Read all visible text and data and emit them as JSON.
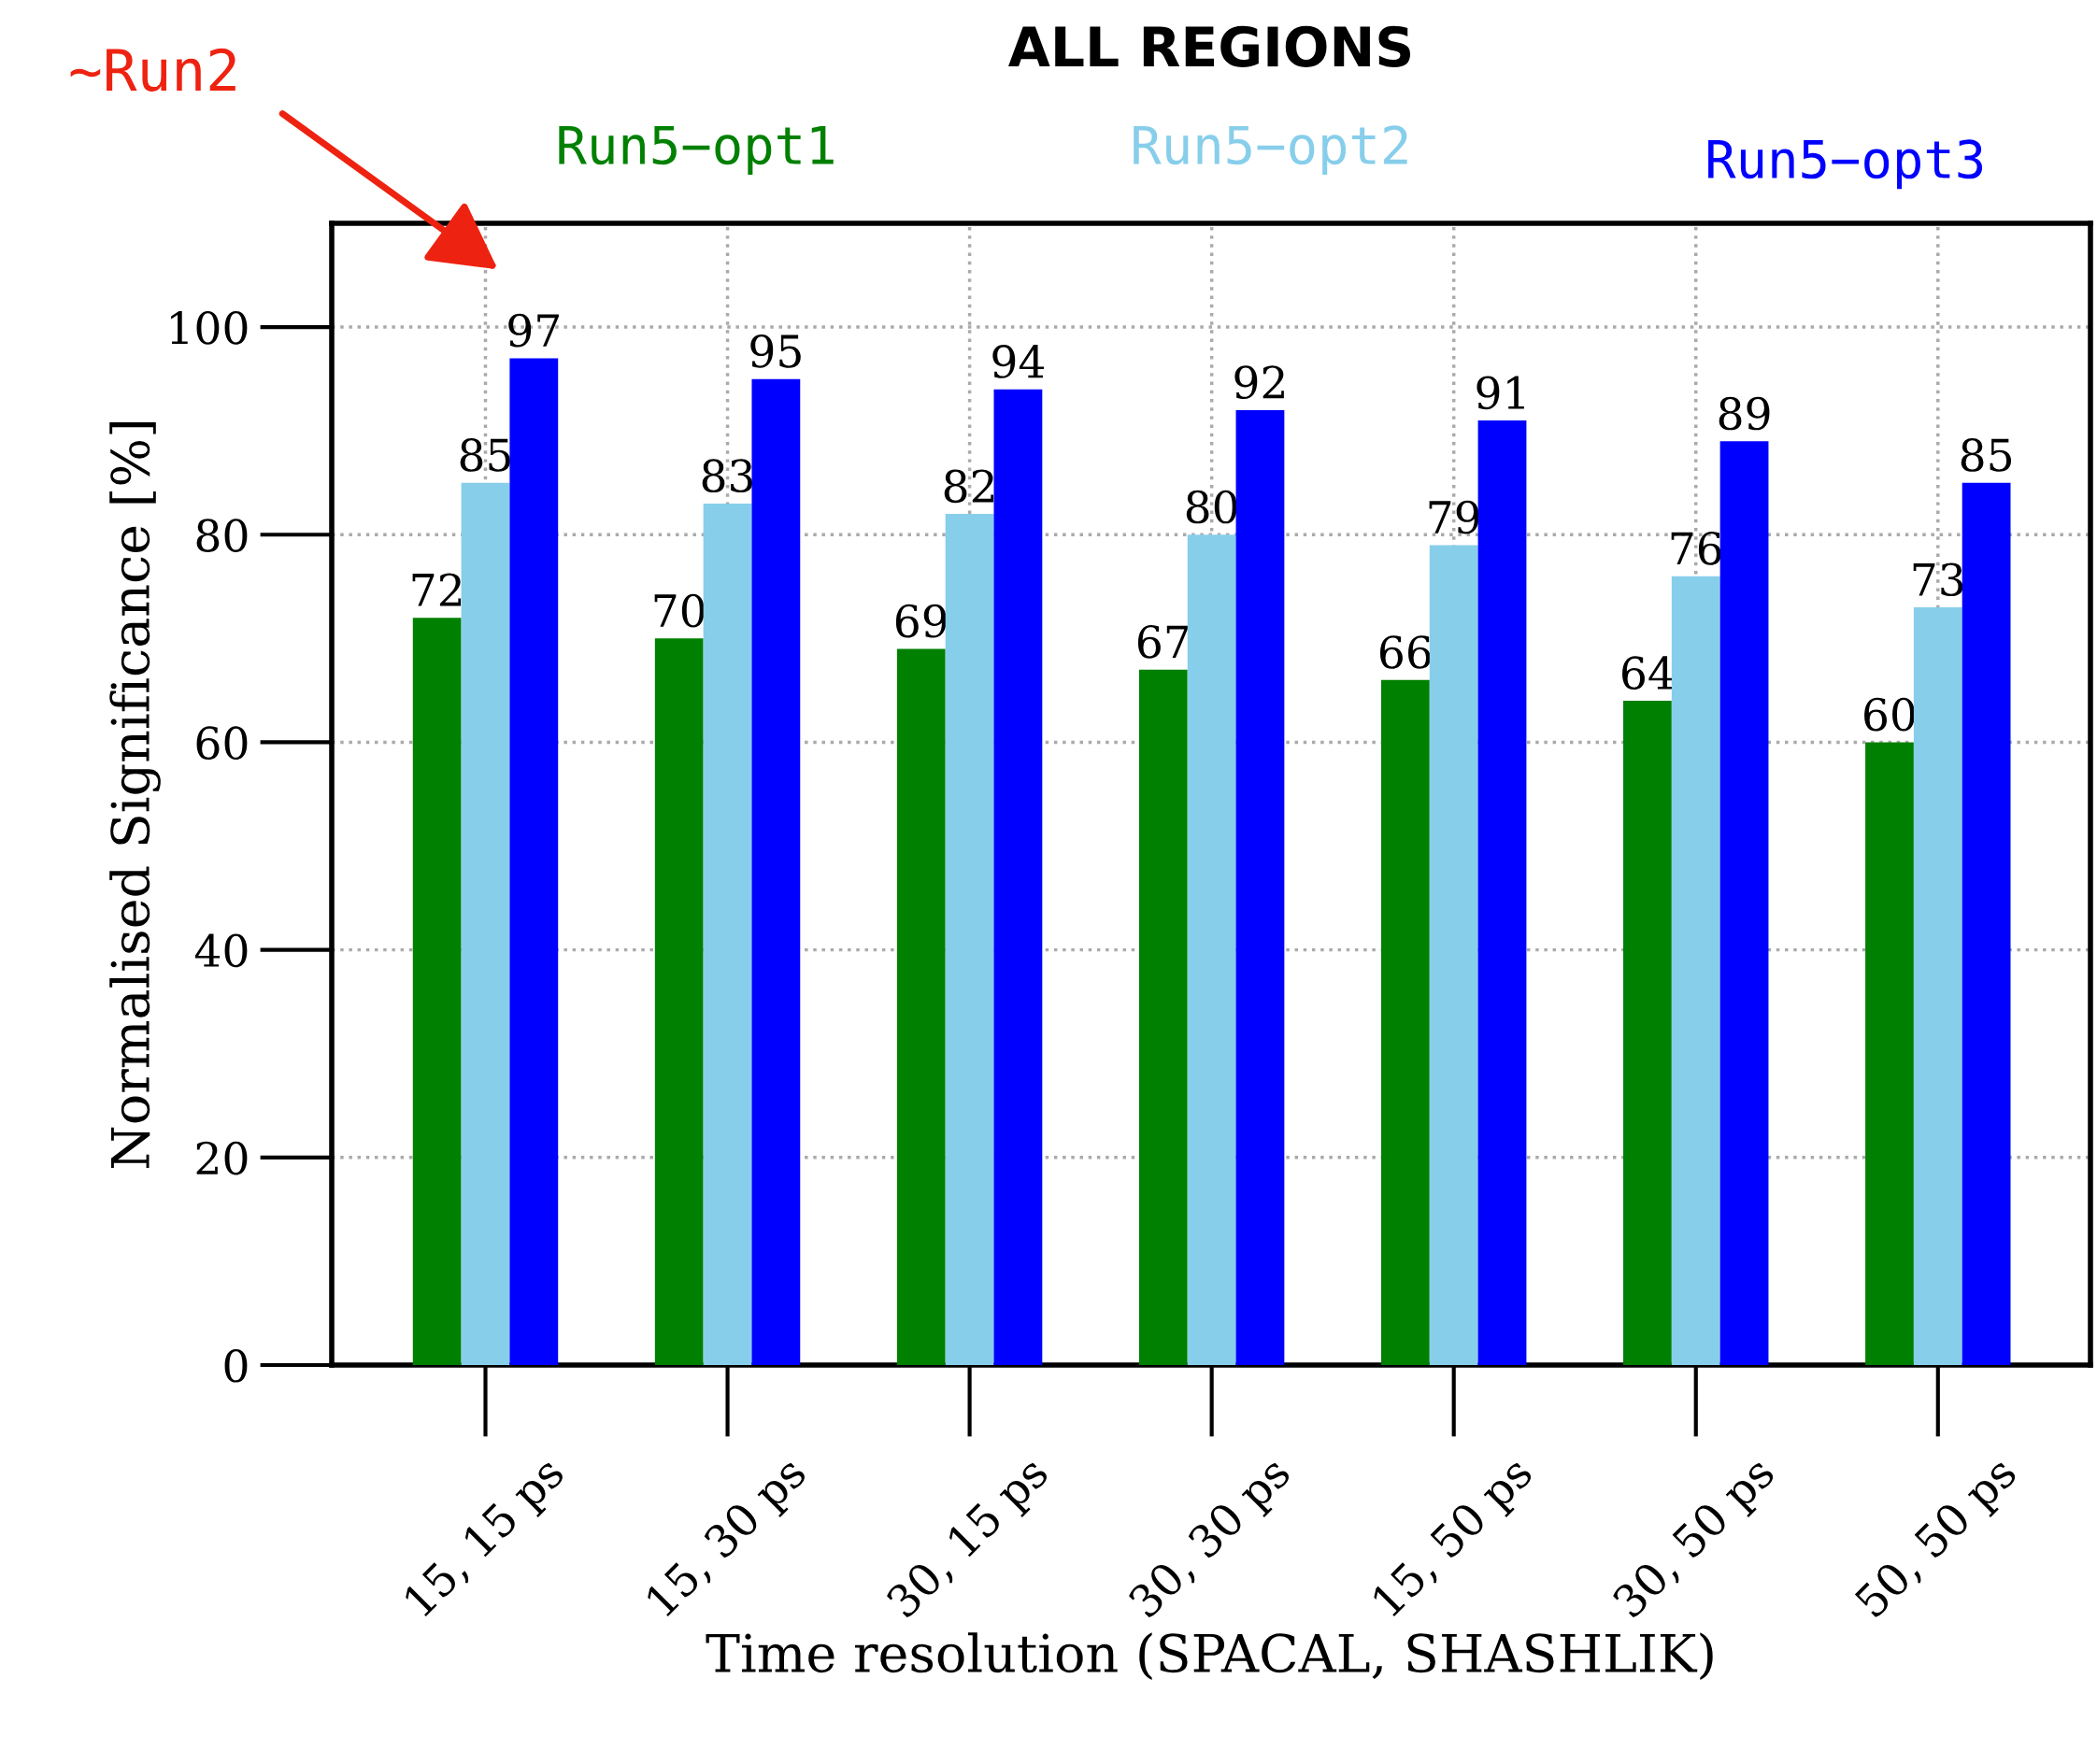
{
  "chart_data": {
    "type": "bar",
    "title": "ALL REGIONS",
    "xlabel": "Time resolution (SPACAL, SHASHLIK)",
    "ylabel": "Normalised Significance [%]",
    "categories": [
      "15, 15 ps",
      "15, 30 ps",
      "30, 15 ps",
      "30, 30 ps",
      "15, 50 ps",
      "30, 50 ps",
      "50, 50 ps"
    ],
    "series": [
      {
        "name": "Run5−opt1",
        "color": "#008000",
        "values": [
          72,
          70,
          69,
          67,
          66,
          64,
          60
        ]
      },
      {
        "name": "Run5−opt2",
        "color": "#87ceeb",
        "values": [
          85,
          83,
          82,
          80,
          79,
          76,
          73
        ]
      },
      {
        "name": "Run5−opt3",
        "color": "#0000ff",
        "values": [
          97,
          95,
          94,
          92,
          91,
          89,
          85
        ]
      }
    ],
    "ylim": [
      0,
      110
    ],
    "yticks": [
      0,
      20,
      40,
      60,
      80,
      100
    ],
    "grid": true,
    "legend": "top",
    "data_labels": true,
    "annotations": [
      "~Run2"
    ]
  }
}
